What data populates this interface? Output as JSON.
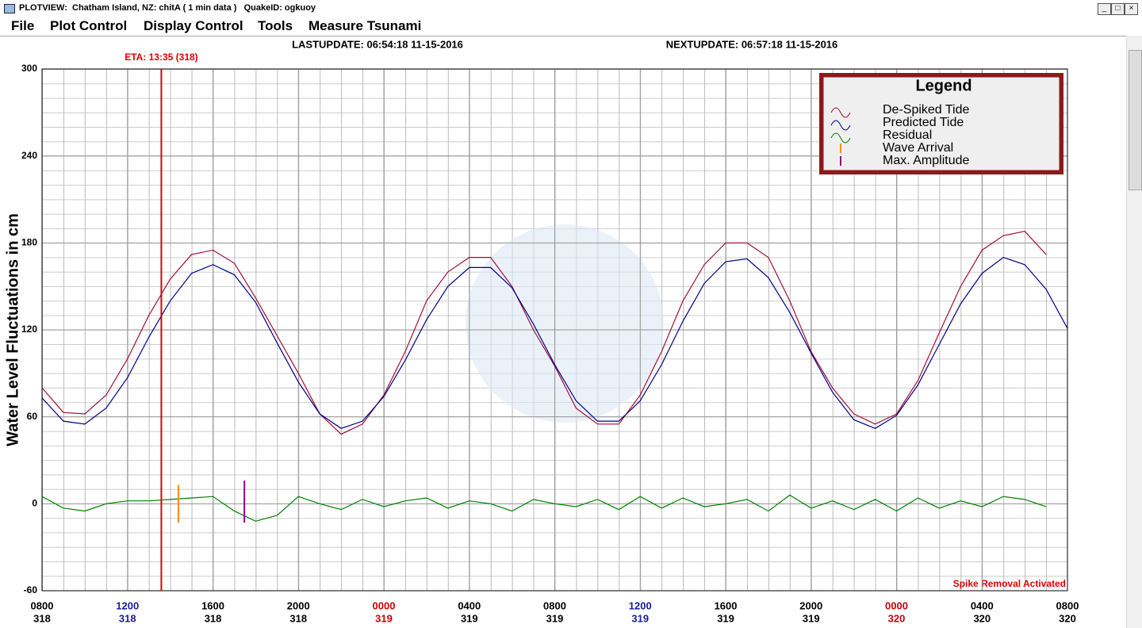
{
  "window": {
    "title": "PLOTVIEW:  Chatham Island, NZ: chitA ( 1 min data )   QuakeID: ogkuoy",
    "menu": [
      "File",
      "Plot Control",
      "Display Control",
      "Tools",
      "Measure Tsunami"
    ]
  },
  "chart_data": {
    "type": "line",
    "last_update": "LASTUPDATE: 06:54:18 11-15-2016",
    "next_update": "NEXTUPDATE: 06:57:18 11-15-2016",
    "y_label": "Water Level Fluctuations in cm",
    "status": "Spike Removal Activated",
    "eta": {
      "text": "ETA: 13:35 (318)",
      "x": 318.566,
      "color": "#e00000"
    },
    "ylim": [
      -60,
      300
    ],
    "yticks": [
      -60,
      0,
      60,
      120,
      180,
      240,
      300
    ],
    "xlim": [
      318.3333,
      320.3333
    ],
    "xticks": [
      {
        "value": 318.3333,
        "label": "0800",
        "day": "318",
        "color": "#000000"
      },
      {
        "value": 318.5,
        "label": "1200",
        "day": "318",
        "color": "#1a1a9c"
      },
      {
        "value": 318.6667,
        "label": "1600",
        "day": "318",
        "color": "#000000"
      },
      {
        "value": 318.8333,
        "label": "2000",
        "day": "318",
        "color": "#000000"
      },
      {
        "value": 319,
        "label": "0000",
        "day": "319",
        "color": "#cc0000"
      },
      {
        "value": 319.1667,
        "label": "0400",
        "day": "319",
        "color": "#000000"
      },
      {
        "value": 319.3333,
        "label": "0800",
        "day": "319",
        "color": "#000000"
      },
      {
        "value": 319.5,
        "label": "1200",
        "day": "319",
        "color": "#1a1a9c"
      },
      {
        "value": 319.6667,
        "label": "1600",
        "day": "319",
        "color": "#000000"
      },
      {
        "value": 319.8333,
        "label": "2000",
        "day": "319",
        "color": "#000000"
      },
      {
        "value": 320,
        "label": "0000",
        "day": "320",
        "color": "#cc0000"
      },
      {
        "value": 320.1667,
        "label": "0400",
        "day": "320",
        "color": "#000000"
      },
      {
        "value": 320.3333,
        "label": "0800",
        "day": "320",
        "color": "#000000"
      }
    ],
    "grid": true,
    "legend": {
      "title": "Legend",
      "position": "upper right"
    },
    "x": [
      318.3333,
      318.375,
      318.4167,
      318.4583,
      318.5,
      318.5417,
      318.5833,
      318.625,
      318.6667,
      318.7083,
      318.75,
      318.7917,
      318.8333,
      318.875,
      318.9167,
      318.9583,
      319,
      319.0417,
      319.0833,
      319.125,
      319.1667,
      319.2083,
      319.25,
      319.2917,
      319.3333,
      319.375,
      319.4167,
      319.4583,
      319.5,
      319.5417,
      319.5833,
      319.625,
      319.6667,
      319.7083,
      319.75,
      319.7917,
      319.8333,
      319.875,
      319.9167,
      319.9583,
      320,
      320.0417,
      320.0833,
      320.125,
      320.1667,
      320.2083,
      320.25,
      320.2917,
      320.3333
    ],
    "series": [
      {
        "name": "De-Spiked Tide",
        "color": "#a0103a",
        "values": [
          80,
          63,
          62,
          75,
          100,
          130,
          155,
          172,
          175,
          166,
          142,
          116,
          90,
          62,
          48,
          55,
          75,
          105,
          140,
          160,
          170,
          170,
          150,
          120,
          95,
          66,
          55,
          55,
          75,
          105,
          140,
          165,
          180,
          180,
          170,
          140,
          105,
          80,
          62,
          55,
          62,
          85,
          118,
          150,
          175,
          185,
          188,
          172,
          null
        ]
      },
      {
        "name": "Predicted Tide",
        "color": "#00008b",
        "values": [
          73,
          57,
          55,
          66,
          87,
          115,
          140,
          159,
          165,
          158,
          139,
          111,
          84,
          62,
          52,
          57,
          74,
          99,
          127,
          150,
          163,
          163,
          149,
          124,
          96,
          71,
          57,
          57,
          71,
          96,
          126,
          152,
          167,
          169,
          156,
          132,
          104,
          77,
          58,
          52,
          61,
          82,
          110,
          138,
          159,
          170,
          165,
          148,
          121
        ]
      },
      {
        "name": "Residual",
        "color": "#008000",
        "values": [
          5,
          -3,
          -5,
          0,
          2,
          2,
          3,
          4,
          5,
          -5,
          -12,
          -8,
          5,
          0,
          -4,
          3,
          -2,
          2,
          4,
          -3,
          2,
          0,
          -5,
          3,
          0,
          -2,
          3,
          -4,
          5,
          -3,
          4,
          -2,
          0,
          3,
          -5,
          6,
          -3,
          2,
          -4,
          3,
          -5,
          4,
          -3,
          2,
          -2,
          5,
          3,
          -2,
          null
        ]
      }
    ],
    "markers": [
      {
        "name": "Wave Arrival",
        "color": "#ff8c00",
        "x": 318.5993,
        "y": [
          -13,
          13
        ]
      },
      {
        "name": "Max. Amplitude",
        "color": "#8b008b",
        "x": 318.728,
        "y": [
          -13,
          16
        ]
      }
    ]
  }
}
